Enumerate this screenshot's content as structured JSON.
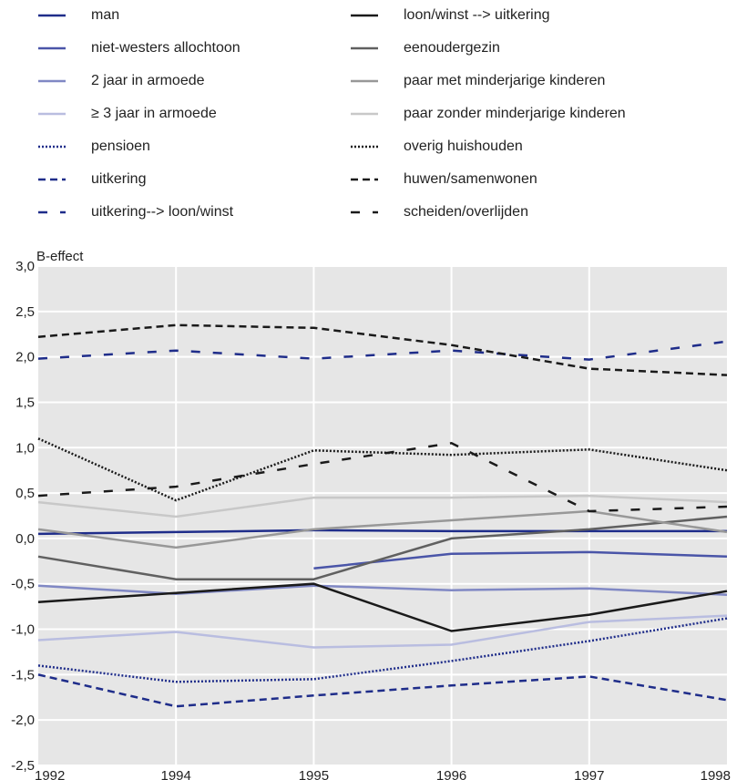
{
  "chart_data": {
    "type": "line",
    "ylabel": "B-effect",
    "xlabel": "",
    "ylim": [
      -2.5,
      3.0
    ],
    "yticks": [
      "3,0",
      "2,5",
      "2,0",
      "1,5",
      "1,0",
      "0,5",
      "0,0",
      "-0,5",
      "-1,0",
      "-1,5",
      "-2,0",
      "-2,5"
    ],
    "ytick_values": [
      3.0,
      2.5,
      2.0,
      1.5,
      1.0,
      0.5,
      0.0,
      -0.5,
      -1.0,
      -1.5,
      -2.0,
      -2.5
    ],
    "categories": [
      "1992",
      "1994",
      "1995",
      "1996",
      "1997",
      "1998"
    ],
    "grid": true,
    "legend_position": "top",
    "series": [
      {
        "name": "man",
        "color": "#1f2d8a",
        "dash": "solid",
        "values": [
          0.05,
          0.07,
          0.09,
          0.08,
          0.08,
          0.08
        ]
      },
      {
        "name": "niet-westers allochtoon",
        "color": "#4a55a8",
        "dash": "solid",
        "values": [
          null,
          null,
          -0.33,
          -0.17,
          -0.15,
          -0.2
        ]
      },
      {
        "name": "2 jaar in armoede",
        "color": "#8088c4",
        "dash": "solid",
        "values": [
          -0.52,
          -0.61,
          -0.52,
          -0.57,
          -0.55,
          -0.62
        ]
      },
      {
        "name": "≥ 3 jaar in armoede",
        "color": "#b9bde0",
        "dash": "solid",
        "values": [
          -1.12,
          -1.03,
          -1.2,
          -1.17,
          -0.92,
          -0.85
        ]
      },
      {
        "name": "pensioen",
        "color": "#1f2d8a",
        "dash": "dotted",
        "values": [
          -1.4,
          -1.58,
          -1.55,
          -1.35,
          -1.13,
          -0.88
        ]
      },
      {
        "name": "uitkering",
        "color": "#1f2d8a",
        "dash": "dashed",
        "values": [
          -1.5,
          -1.85,
          -1.73,
          -1.62,
          -1.52,
          -1.78
        ]
      },
      {
        "name": "uitkering--> loon/winst",
        "color": "#1f2d8a",
        "dash": "longdash",
        "values": [
          1.98,
          2.07,
          1.98,
          2.07,
          1.97,
          2.17
        ]
      },
      {
        "name": "loon/winst --> uitkering",
        "color": "#1a1a1a",
        "dash": "solid",
        "values": [
          -0.7,
          -0.6,
          -0.5,
          -1.02,
          -0.84,
          -0.58
        ]
      },
      {
        "name": "eenoudergezin",
        "color": "#606060",
        "dash": "solid",
        "values": [
          -0.2,
          -0.45,
          -0.45,
          0.0,
          0.1,
          0.24
        ]
      },
      {
        "name": "paar met minderjarige kinderen",
        "color": "#989898",
        "dash": "solid",
        "values": [
          0.1,
          -0.1,
          0.1,
          0.2,
          0.3,
          0.07
        ]
      },
      {
        "name": "paar zonder minderjarige kinderen",
        "color": "#c8c8c8",
        "dash": "solid",
        "values": [
          0.4,
          0.24,
          0.45,
          0.45,
          0.47,
          0.4
        ]
      },
      {
        "name": "overig huishouden",
        "color": "#1a1a1a",
        "dash": "dotted",
        "values": [
          1.1,
          0.42,
          0.97,
          0.92,
          0.98,
          0.75
        ]
      },
      {
        "name": "huwen/samenwonen",
        "color": "#1a1a1a",
        "dash": "dashed",
        "values": [
          2.22,
          2.35,
          2.32,
          2.13,
          1.87,
          1.8
        ]
      },
      {
        "name": "scheiden/overlijden",
        "color": "#1a1a1a",
        "dash": "longdash",
        "values": [
          0.47,
          0.57,
          0.82,
          1.05,
          0.3,
          0.35
        ]
      }
    ]
  }
}
